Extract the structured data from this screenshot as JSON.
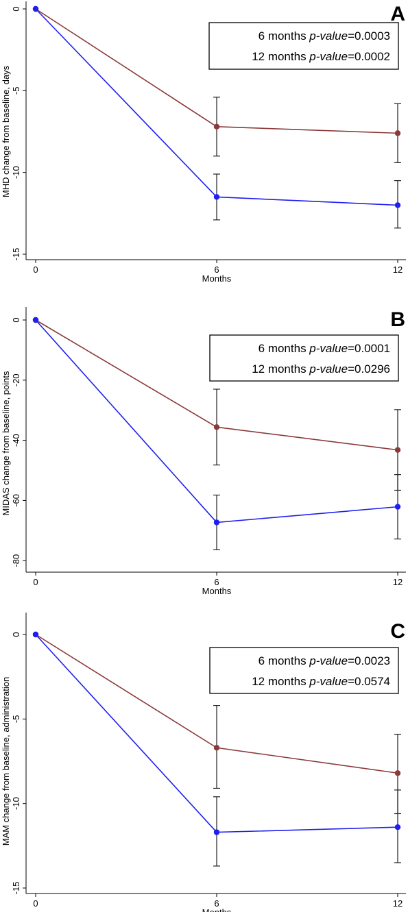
{
  "chart_data": [
    {
      "type": "line",
      "panel_label": "A",
      "x": [
        0,
        6,
        12
      ],
      "xlabel": "Months",
      "ylabel": "MHD change from baseline, days",
      "ylim": [
        -15,
        0
      ],
      "yticks": [
        0,
        -5,
        -10,
        -15
      ],
      "xticks": [
        0,
        6,
        12
      ],
      "grid": false,
      "legend": "none",
      "series": [
        {
          "color": "#8B3A3A",
          "values": [
            0,
            -7.2,
            -7.6
          ],
          "error_low": [
            null,
            -9.0,
            -9.4
          ],
          "error_high": [
            null,
            -5.4,
            -5.8
          ]
        },
        {
          "color": "#1F1FF0",
          "values": [
            0,
            -11.5,
            -12.0
          ],
          "error_low": [
            null,
            -12.9,
            -13.4
          ],
          "error_high": [
            null,
            -10.1,
            -10.5
          ]
        }
      ],
      "annotation": {
        "lines": [
          {
            "prefix": "6 months ",
            "italic": "p-value",
            "suffix": "=0.0003"
          },
          {
            "prefix": "12 months ",
            "italic": "p-value",
            "suffix": "=0.0002"
          }
        ]
      }
    },
    {
      "type": "line",
      "panel_label": "B",
      "x": [
        0,
        6,
        12
      ],
      "xlabel": "Months",
      "ylabel": "MIDAS change from baseline, points",
      "ylim": [
        -82,
        0
      ],
      "yticks": [
        0,
        -20,
        -40,
        -60,
        -80
      ],
      "xticks": [
        0,
        6,
        12
      ],
      "grid": false,
      "legend": "none",
      "series": [
        {
          "color": "#8B3A3A",
          "values": [
            0,
            -35.6,
            -43.2
          ],
          "error_low": [
            null,
            -48.2,
            -56.6
          ],
          "error_high": [
            null,
            -23.0,
            -29.8
          ]
        },
        {
          "color": "#1F1FF0",
          "values": [
            0,
            -67.3,
            -62.1
          ],
          "error_low": [
            null,
            -76.4,
            -72.8
          ],
          "error_high": [
            null,
            -58.2,
            -51.4
          ]
        }
      ],
      "annotation": {
        "lines": [
          {
            "prefix": "6 months ",
            "italic": "p-value",
            "suffix": "=0.0001"
          },
          {
            "prefix": "12 months ",
            "italic": "p-value",
            "suffix": "=0.0296"
          }
        ]
      }
    },
    {
      "type": "line",
      "panel_label": "C",
      "x": [
        0,
        6,
        12
      ],
      "xlabel": "Months",
      "ylabel": "MAM change from baseline, administration",
      "ylim": [
        -15,
        0
      ],
      "yticks": [
        0,
        -5,
        -10,
        -15
      ],
      "xticks": [
        0,
        6,
        12
      ],
      "grid": false,
      "legend": "none",
      "series": [
        {
          "color": "#8B3A3A",
          "values": [
            0,
            -6.7,
            -8.2
          ],
          "error_low": [
            null,
            -9.1,
            -10.6
          ],
          "error_high": [
            null,
            -4.2,
            -5.9
          ]
        },
        {
          "color": "#1F1FF0",
          "values": [
            0,
            -11.7,
            -11.4
          ],
          "error_low": [
            null,
            -13.7,
            -13.5
          ],
          "error_high": [
            null,
            -9.6,
            -9.2
          ]
        }
      ],
      "annotation": {
        "lines": [
          {
            "prefix": "6 months ",
            "italic": "p-value",
            "suffix": "=0.0023"
          },
          {
            "prefix": "12 months ",
            "italic": "p-value",
            "suffix": "=0.0574"
          }
        ]
      }
    }
  ]
}
